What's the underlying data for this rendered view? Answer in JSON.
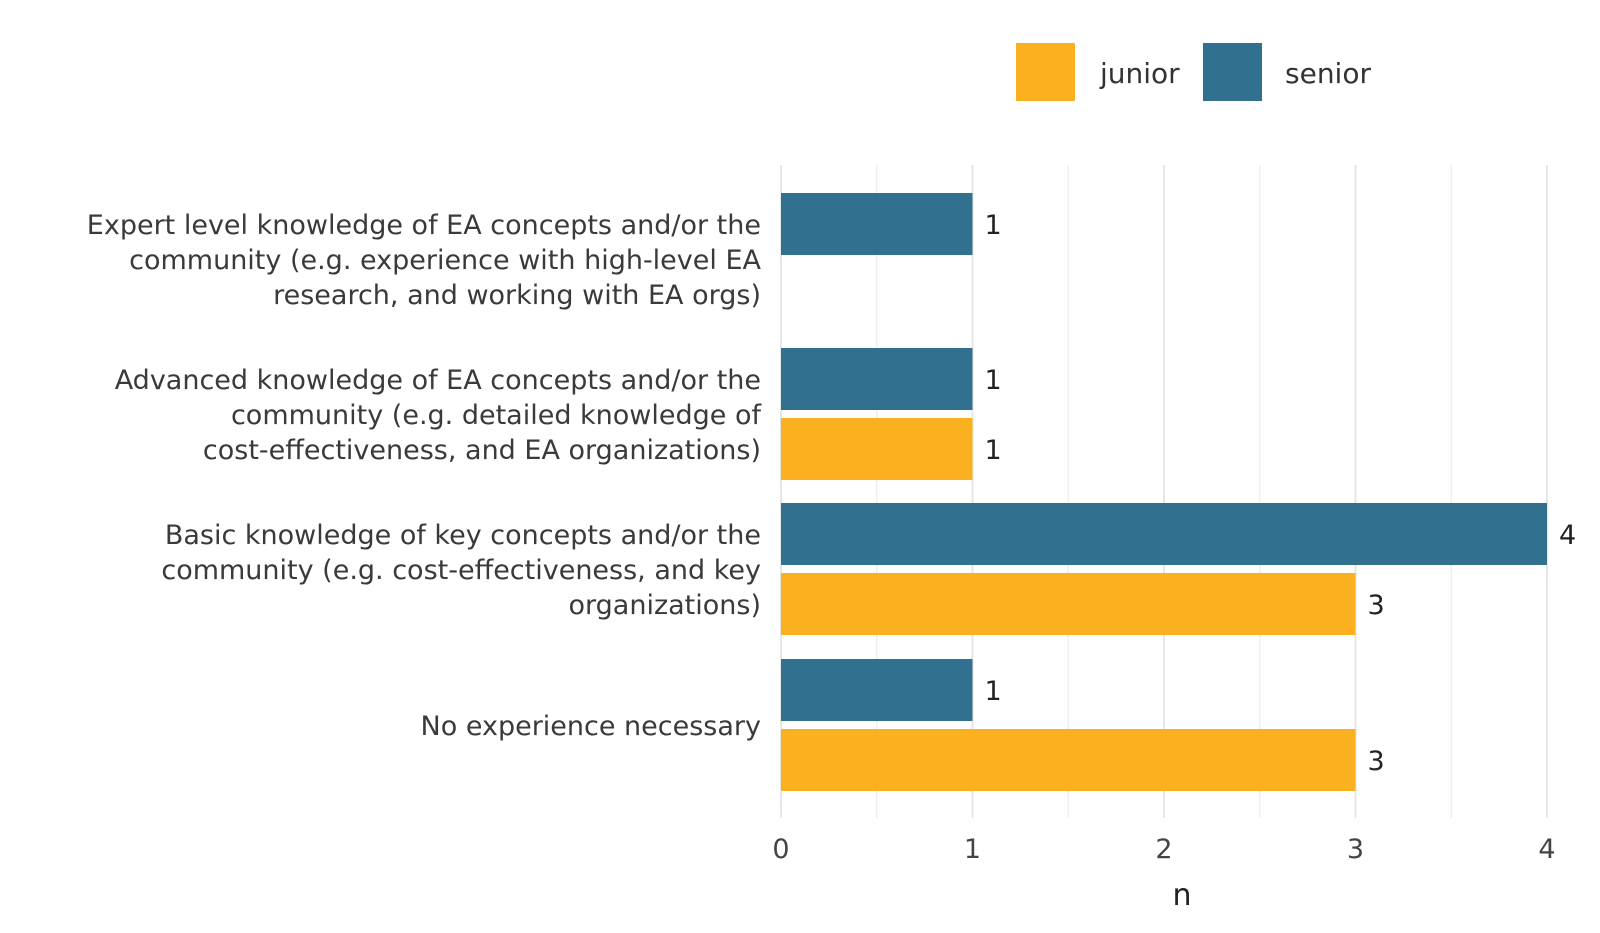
{
  "chart_data": {
    "type": "bar",
    "orientation": "horizontal",
    "title": "",
    "xlabel": "n",
    "ylabel": "",
    "xlim": [
      0,
      4
    ],
    "xticks": [
      "0",
      "1",
      "2",
      "3",
      "4"
    ],
    "grid": true,
    "legend": {
      "position": "top-right"
    },
    "categories": [
      [
        "Expert level knowledge of EA concepts and/or the",
        "community (e.g. experience with high-level EA",
        "research, and working with EA orgs)"
      ],
      [
        "Advanced knowledge of EA concepts and/or the",
        "community (e.g. detailed knowledge of",
        "cost-effectiveness, and EA organizations)"
      ],
      [
        "Basic knowledge of key concepts and/or the",
        "community (e.g. cost-effectiveness, and key",
        "organizations)"
      ],
      [
        "No experience necessary"
      ]
    ],
    "series": [
      {
        "name": "senior",
        "color": "#31708F",
        "values": [
          1,
          1,
          4,
          1
        ]
      },
      {
        "name": "junior",
        "color": "#FBB11F",
        "values": [
          null,
          1,
          3,
          3
        ]
      }
    ],
    "legend_order": [
      "junior",
      "senior"
    ]
  }
}
